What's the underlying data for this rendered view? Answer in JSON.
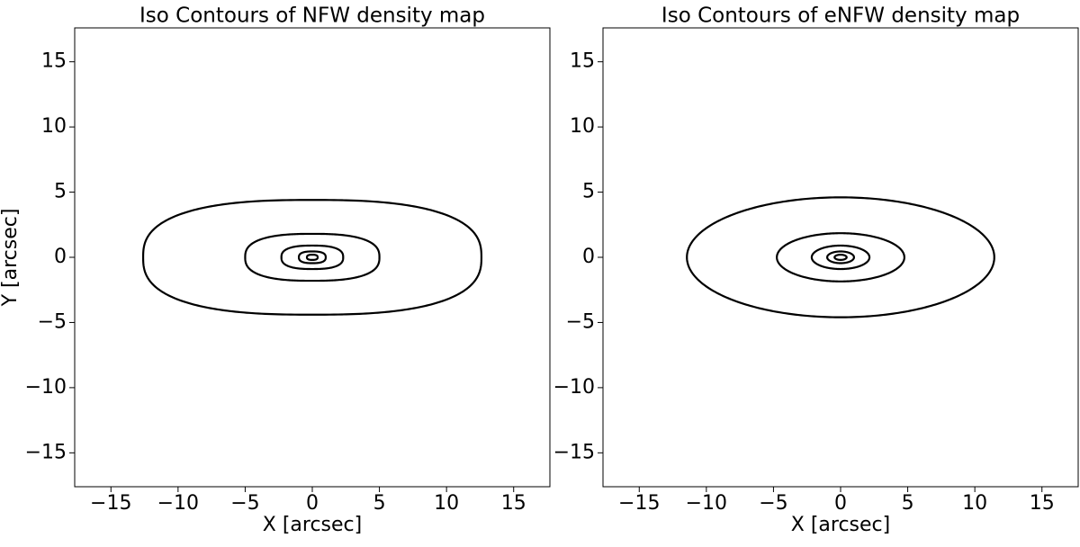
{
  "chart_data": [
    {
      "type": "contour",
      "title": "Iso Contours of NFW density map",
      "xlabel": "X [arcsec]",
      "ylabel": "Y [arcsec]",
      "xlim": [
        -17.7,
        17.7
      ],
      "ylim": [
        -17.6,
        17.6
      ],
      "xticks": [
        {
          "value": -15,
          "label": "−15"
        },
        {
          "value": -10,
          "label": "−10"
        },
        {
          "value": -5,
          "label": "−5"
        },
        0,
        5,
        10,
        15
      ],
      "yticks": [
        {
          "value": -15,
          "label": "−15"
        },
        {
          "value": -10,
          "label": "−10"
        },
        {
          "value": -5,
          "label": "−5"
        },
        0,
        5,
        10,
        15
      ],
      "color": "#000000",
      "superellipse_exponent": 2.6,
      "contours": [
        {
          "x_extent": 12.6,
          "y_extent": 4.4
        },
        {
          "x_extent": 5.0,
          "y_extent": 1.8
        },
        {
          "x_extent": 2.3,
          "y_extent": 0.9
        },
        {
          "x_extent": 1.0,
          "y_extent": 0.45
        },
        {
          "x_extent": 0.4,
          "y_extent": 0.2
        }
      ]
    },
    {
      "type": "contour",
      "title": "Iso Contours of eNFW density map",
      "xlabel": "X [arcsec]",
      "xlim": [
        -17.7,
        17.7
      ],
      "ylim": [
        -17.6,
        17.6
      ],
      "xticks": [
        {
          "value": -15,
          "label": "−15"
        },
        {
          "value": -10,
          "label": "−10"
        },
        {
          "value": -5,
          "label": "−5"
        },
        0,
        5,
        10,
        15
      ],
      "yticks": [
        {
          "value": -15,
          "label": "−15"
        },
        {
          "value": -10,
          "label": "−10"
        },
        {
          "value": -5,
          "label": "−5"
        },
        0,
        5,
        10,
        15
      ],
      "color": "#000000",
      "superellipse_exponent": 2,
      "contours": [
        {
          "x_extent": 11.45,
          "y_extent": 4.6
        },
        {
          "x_extent": 4.75,
          "y_extent": 1.85
        },
        {
          "x_extent": 2.15,
          "y_extent": 0.9
        },
        {
          "x_extent": 1.0,
          "y_extent": 0.45
        },
        {
          "x_extent": 0.45,
          "y_extent": 0.2
        }
      ]
    }
  ]
}
